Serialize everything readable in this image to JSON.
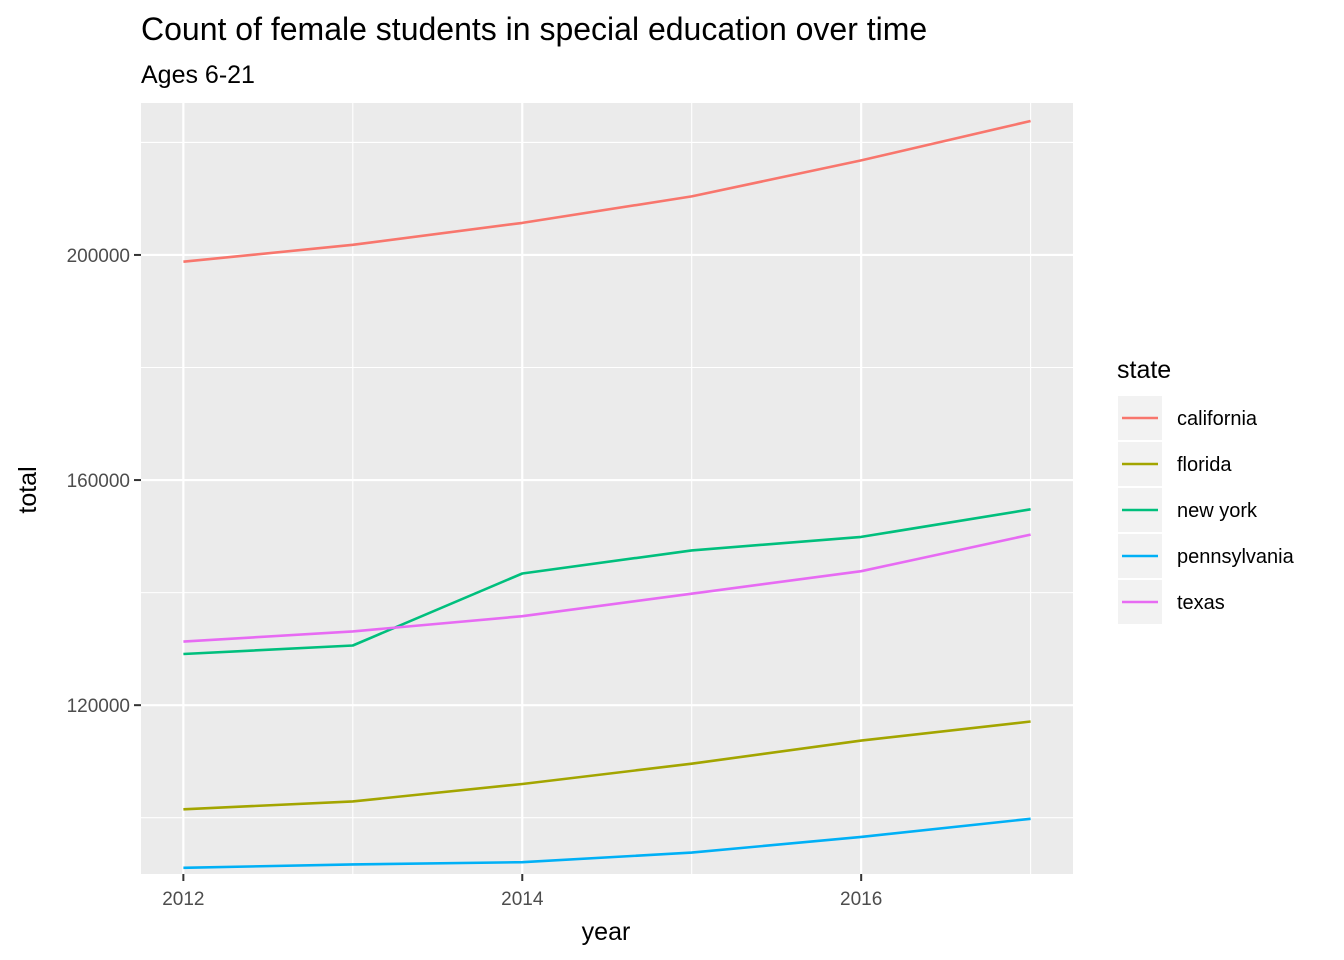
{
  "chart_data": {
    "type": "line",
    "title": "Count of female students in special education over time",
    "subtitle": "Ages 6-21",
    "xlabel": "year",
    "ylabel": "total",
    "x": [
      2012,
      2013,
      2014,
      2015,
      2016,
      2017
    ],
    "xlim": [
      2011.75,
      2017.25
    ],
    "ylim": [
      90000,
      227000
    ],
    "x_ticks": [
      2012,
      2014,
      2016
    ],
    "x_tick_labels": [
      "2012",
      "2014",
      "2016"
    ],
    "y_ticks": [
      120000,
      160000,
      200000
    ],
    "y_tick_labels": [
      "120000",
      "160000",
      "200000"
    ],
    "grid": true,
    "legend": {
      "title": "state",
      "placement": "right"
    },
    "series": [
      {
        "name": "california",
        "color": "#F8766D",
        "values": [
          198800,
          201800,
          205700,
          210400,
          216800,
          223800
        ]
      },
      {
        "name": "florida",
        "color": "#A3A500",
        "values": [
          101500,
          102900,
          106000,
          109600,
          113700,
          117100
        ]
      },
      {
        "name": "new york",
        "color": "#00BF7D",
        "values": [
          129100,
          130600,
          143400,
          147500,
          149900,
          154800
        ]
      },
      {
        "name": "pennsylvania",
        "color": "#00B0F6",
        "values": [
          91100,
          91700,
          92100,
          93800,
          96600,
          99800
        ]
      },
      {
        "name": "texas",
        "color": "#E76BF3",
        "values": [
          131300,
          133100,
          135800,
          139800,
          143800,
          150300
        ]
      }
    ]
  }
}
